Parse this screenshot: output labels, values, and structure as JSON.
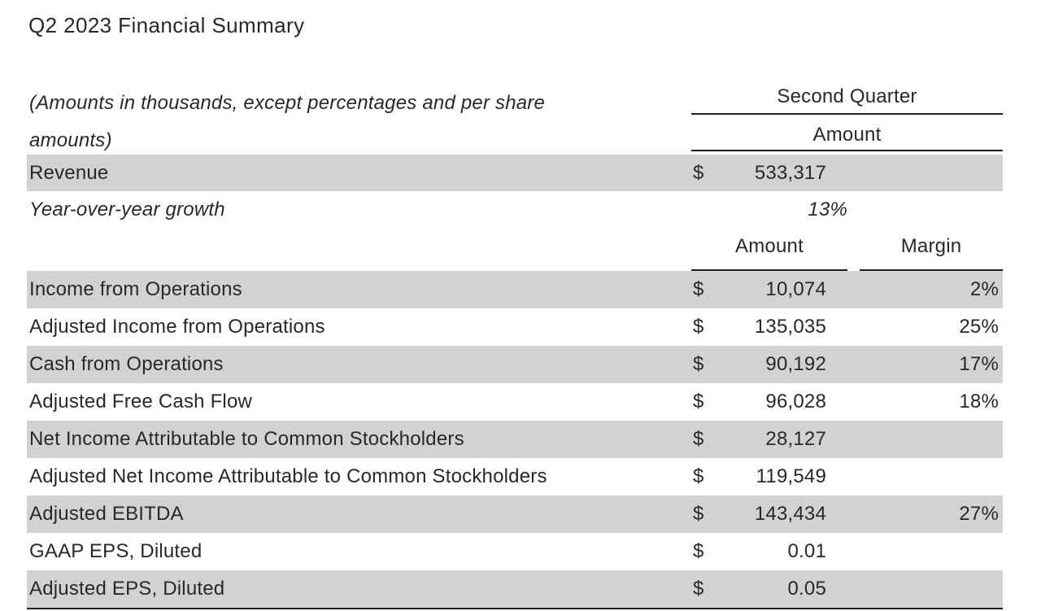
{
  "title": "Q2 2023 Financial Summary",
  "note": {
    "line1": "(Amounts in thousands, except percentages and per share",
    "line2": "amounts)"
  },
  "quarter_header": {
    "group_label": "Second Quarter",
    "amount_label": "Amount"
  },
  "subheader": {
    "amount_label": "Amount",
    "margin_label": "Margin"
  },
  "summary_rows": [
    {
      "label": "Revenue",
      "currency": "$",
      "amount": "533,317"
    },
    {
      "label": "Year-over-year growth",
      "amount": "13%"
    }
  ],
  "rows": [
    {
      "label": "Income from Operations",
      "currency": "$",
      "amount": "10,074",
      "margin": "2%"
    },
    {
      "label": "Adjusted Income from Operations",
      "currency": "$",
      "amount": "135,035",
      "margin": "25%"
    },
    {
      "label": "Cash from Operations",
      "currency": "$",
      "amount": "90,192",
      "margin": "17%"
    },
    {
      "label": "Adjusted Free Cash Flow",
      "currency": "$",
      "amount": "96,028",
      "margin": "18%"
    },
    {
      "label": "Net Income Attributable to Common Stockholders",
      "currency": "$",
      "amount": "28,127",
      "margin": ""
    },
    {
      "label": "Adjusted Net Income Attributable to Common Stockholders",
      "currency": "$",
      "amount": "119,549",
      "margin": ""
    },
    {
      "label": "Adjusted EBITDA",
      "currency": "$",
      "amount": "143,434",
      "margin": "27%"
    },
    {
      "label": "GAAP EPS, Diluted",
      "currency": "$",
      "amount": "0.01",
      "margin": ""
    },
    {
      "label": "Adjusted EPS, Diluted",
      "currency": "$",
      "amount": "0.05",
      "margin": ""
    }
  ],
  "colors": {
    "row_shade": "#d2d2d2",
    "text": "#26292c",
    "rule": "#1d1f21",
    "background": "#ffffff"
  }
}
